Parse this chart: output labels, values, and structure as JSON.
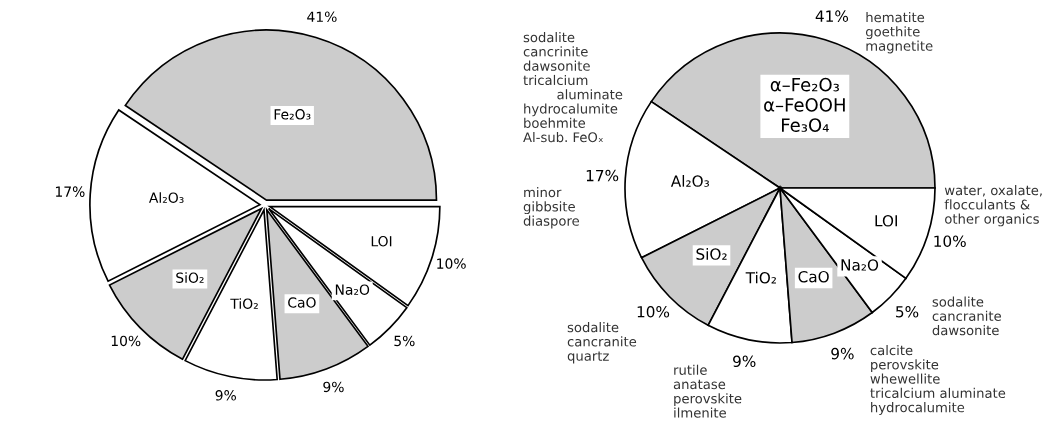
{
  "chart_data": [
    {
      "type": "pie",
      "categories": [
        "Fe₂O₃",
        "Al₂O₃",
        "SiO₂",
        "TiO₂",
        "CaO",
        "Na₂O",
        "LOI"
      ],
      "values": [
        41,
        17,
        10,
        9,
        9,
        5,
        10
      ],
      "value_labels": [
        "41%",
        "17%",
        "10%",
        "9%",
        "9%",
        "5%",
        "10%"
      ],
      "colors": [
        "#cccccc",
        "#ffffff",
        "#cccccc",
        "#ffffff",
        "#cccccc",
        "#ffffff",
        "#ffffff"
      ]
    },
    {
      "type": "pie",
      "categories": [
        "α–Fe₂O₃\nα–FeOOH\nFe₃O₄",
        "Al₂O₃",
        "SiO₂",
        "TiO₂",
        "CaO",
        "Na₂O",
        "LOI"
      ],
      "values": [
        41,
        17,
        10,
        9,
        9,
        5,
        10
      ],
      "value_labels": [
        "41%",
        "17%",
        "10%",
        "9%",
        "9%",
        "5%",
        "10%"
      ],
      "colors": [
        "#cccccc",
        "#ffffff",
        "#cccccc",
        "#ffffff",
        "#cccccc",
        "#ffffff",
        "#ffffff"
      ],
      "annotations": [
        "hematite\ngoethite\nmagnetite",
        "sodalite\ncancrinite\ndawsonite\ntricalcium\n        aluminate\nhydrocalumite\nboehmite\nAl-sub. FeOₓ",
        "minor\ngibbsite\ndiaspore",
        "water, oxalate,\nflocculants &\nother organics",
        "sodalite\ncancranite\ndawsonite",
        "calcite\nperovskite\nwhewellite\ntricalcium aluminate\nhydrocalumite",
        "rutile\nanatase\nperovskite\nilmenite",
        "sodalite\ncancranite\nquartz"
      ]
    }
  ]
}
